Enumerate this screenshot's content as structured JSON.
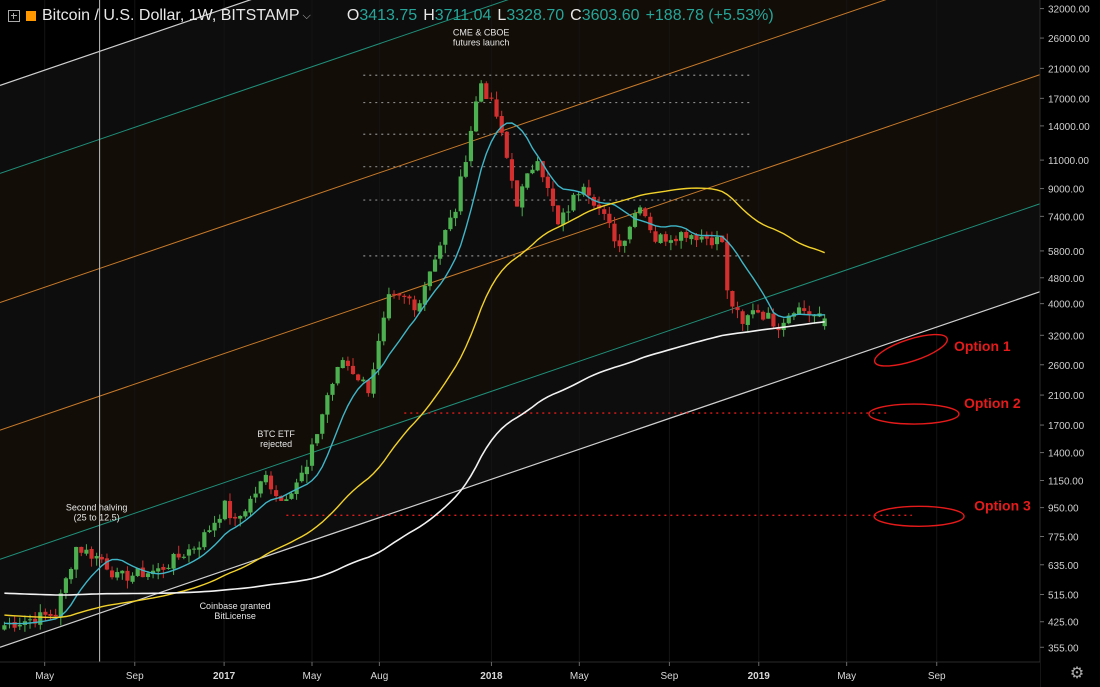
{
  "header": {
    "symbol_title": "Bitcoin / U.S. Dollar, 1W, BITSTAMP",
    "open_label": "O",
    "open_value": "3413.75",
    "high_label": "H",
    "high_value": "3711.04",
    "low_label": "L",
    "low_value": "3328.70",
    "close_label": "C",
    "close_value": "3603.60",
    "change": "+188.78 (+5.53%)"
  },
  "colors": {
    "background": "#000000",
    "channel_white": "#cfcfcf",
    "channel_teal": "#1f8f7a",
    "channel_orange": "#c87a2a",
    "ma_fast": "#3fb6c8",
    "ma_mid": "#f2d22a",
    "ma_slow": "#f2f2f2",
    "bull": "#4caf50",
    "bear": "#d32f2f",
    "annotation_red": "#e51a1a"
  },
  "chart_data": {
    "type": "candlestick",
    "scale": "log",
    "ylim": [
      320,
      34000
    ],
    "y_ticks": [
      "355.00",
      "425.00",
      "515.00",
      "635.00",
      "775.00",
      "950.00",
      "1150.00",
      "1400.00",
      "1700.00",
      "2100.00",
      "2600.00",
      "3200.00",
      "4000.00",
      "4800.00",
      "5800.00",
      "7400.00",
      "9000.00",
      "11000.00",
      "14000.00",
      "17000.00",
      "21000.00",
      "26000.00",
      "32000.00"
    ],
    "x_ticks": [
      "May",
      "Sep",
      "2017",
      "May",
      "Aug",
      "2018",
      "May",
      "Sep",
      "2019",
      "May",
      "Sep"
    ],
    "x_range": [
      "2016-03-01",
      "2020-01-20"
    ],
    "price_anchors": [
      [
        "2016-03-07",
        415
      ],
      [
        "2016-05-16",
        450
      ],
      [
        "2016-06-13",
        720
      ],
      [
        "2016-07-18",
        660
      ],
      [
        "2016-08-08",
        580
      ],
      [
        "2016-10-03",
        610
      ],
      [
        "2016-11-28",
        740
      ],
      [
        "2017-01-02",
        960
      ],
      [
        "2017-01-16",
        850
      ],
      [
        "2017-02-27",
        1180
      ],
      [
        "2017-03-20",
        1000
      ],
      [
        "2017-04-24",
        1250
      ],
      [
        "2017-05-22",
        2100
      ],
      [
        "2017-06-12",
        2700
      ],
      [
        "2017-07-17",
        2200
      ],
      [
        "2017-08-14",
        4100
      ],
      [
        "2017-09-11",
        4100
      ],
      [
        "2017-09-18",
        3800
      ],
      [
        "2017-10-16",
        5600
      ],
      [
        "2017-11-13",
        7800
      ],
      [
        "2017-12-11",
        16500
      ],
      [
        "2017-12-18",
        19000
      ],
      [
        "2018-01-08",
        15000
      ],
      [
        "2018-02-05",
        8200
      ],
      [
        "2018-03-05",
        11400
      ],
      [
        "2018-04-02",
        6900
      ],
      [
        "2018-05-07",
        9500
      ],
      [
        "2018-06-25",
        6000
      ],
      [
        "2018-07-23",
        8200
      ],
      [
        "2018-08-13",
        6300
      ],
      [
        "2018-09-24",
        6600
      ],
      [
        "2018-11-12",
        6200
      ],
      [
        "2018-11-19",
        4300
      ],
      [
        "2018-12-10",
        3400
      ],
      [
        "2018-12-24",
        3900
      ],
      [
        "2019-01-28",
        3450
      ],
      [
        "2019-02-18",
        3900
      ],
      [
        "2019-03-04",
        3820
      ],
      [
        "2019-03-25",
        3600
      ]
    ],
    "last_candle": {
      "open": 3413.75,
      "high": 3711.04,
      "low": 3328.7,
      "close": 3603.6
    },
    "moving_averages": [
      {
        "color_key": "ma_fast",
        "period_weeks": 10
      },
      {
        "color_key": "ma_mid",
        "period_weeks": 50
      },
      {
        "color_key": "ma_slow",
        "period_weeks": 200
      }
    ],
    "horizontal_levels": [
      {
        "price": 20000,
        "style": "dotted-gray"
      },
      {
        "price": 16500,
        "style": "dotted-gray"
      },
      {
        "price": 13200,
        "style": "dotted-gray"
      },
      {
        "price": 10500,
        "style": "dotted-gray"
      },
      {
        "price": 8300,
        "style": "dotted-gray"
      },
      {
        "price": 5600,
        "style": "dotted-gray"
      },
      {
        "price": 1850,
        "style": "dotted-red"
      },
      {
        "price": 900,
        "style": "dotted-red"
      }
    ],
    "annotations": [
      {
        "text": "CME & CBOE\nfutures launch",
        "date": "2017-12-18",
        "price": 26500
      },
      {
        "text": "BTC ETF\nrejected",
        "date": "2017-03-13",
        "price": 1560
      },
      {
        "text": "Second halving\n(25 to 12.5)",
        "date": "2016-07-11",
        "price": 930
      },
      {
        "text": "Coinbase granted\nBitLicense",
        "date": "2017-01-16",
        "price": 465
      }
    ],
    "options": [
      {
        "label": "Option 1",
        "date": "2019-06-10",
        "price": 2800
      },
      {
        "label": "Option 2",
        "date": "2019-06-10",
        "price": 1850
      },
      {
        "label": "Option 3",
        "date": "2019-06-17",
        "price": 900
      }
    ]
  }
}
